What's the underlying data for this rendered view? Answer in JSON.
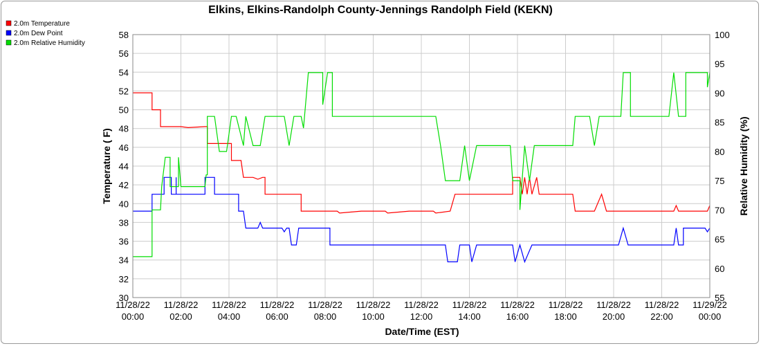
{
  "chart_data": {
    "type": "line",
    "title": "Elkins, Elkins-Randolph County-Jennings Randolph Field (KEKN)",
    "xlabel": "Date/Time (EST)",
    "ylabel": "Temperature ( F)",
    "y2label": "Relative Humidity (%)",
    "xlim_hours": [
      0,
      24
    ],
    "ylim": [
      30,
      58
    ],
    "y2lim": [
      55,
      100
    ],
    "yticks": [
      "30",
      "32",
      "34",
      "36",
      "38",
      "40",
      "42",
      "44",
      "46",
      "48",
      "50",
      "52",
      "54",
      "56",
      "58"
    ],
    "y2ticks": [
      "55",
      "60",
      "65",
      "70",
      "75",
      "80",
      "85",
      "90",
      "95",
      "100"
    ],
    "xticks": [
      {
        "date": "11/28/22",
        "time": "00:00"
      },
      {
        "date": "11/28/22",
        "time": "02:00"
      },
      {
        "date": "11/28/22",
        "time": "04:00"
      },
      {
        "date": "11/28/22",
        "time": "06:00"
      },
      {
        "date": "11/28/22",
        "time": "08:00"
      },
      {
        "date": "11/28/22",
        "time": "10:00"
      },
      {
        "date": "11/28/22",
        "time": "12:00"
      },
      {
        "date": "11/28/22",
        "time": "14:00"
      },
      {
        "date": "11/28/22",
        "time": "16:00"
      },
      {
        "date": "11/28/22",
        "time": "18:00"
      },
      {
        "date": "11/28/22",
        "time": "20:00"
      },
      {
        "date": "11/28/22",
        "time": "22:00"
      },
      {
        "date": "11/29/22",
        "time": "00:00"
      }
    ],
    "grid": true,
    "legend_position": "top-left",
    "series": [
      {
        "name": "2.0m Temperature",
        "color": "#ff0000",
        "axis": "left",
        "points": [
          [
            0,
            51.8
          ],
          [
            0.8,
            51.8
          ],
          [
            0.8,
            50.0
          ],
          [
            1.15,
            50.0
          ],
          [
            1.15,
            48.2
          ],
          [
            2.0,
            48.2
          ],
          [
            2.3,
            48.1
          ],
          [
            3.0,
            48.2
          ],
          [
            3.1,
            48.2
          ],
          [
            3.1,
            46.4
          ],
          [
            4.1,
            46.4
          ],
          [
            4.1,
            44.6
          ],
          [
            4.5,
            44.6
          ],
          [
            4.6,
            42.8
          ],
          [
            5.0,
            42.8
          ],
          [
            5.2,
            42.6
          ],
          [
            5.4,
            42.8
          ],
          [
            5.5,
            42.8
          ],
          [
            5.5,
            41.0
          ],
          [
            7.0,
            41.0
          ],
          [
            7.0,
            39.2
          ],
          [
            8.5,
            39.2
          ],
          [
            8.6,
            39.0
          ],
          [
            9.5,
            39.2
          ],
          [
            10.5,
            39.2
          ],
          [
            10.6,
            39.0
          ],
          [
            11.5,
            39.2
          ],
          [
            12.5,
            39.2
          ],
          [
            12.6,
            39.0
          ],
          [
            13.2,
            39.2
          ],
          [
            13.4,
            41.0
          ],
          [
            15.8,
            41.0
          ],
          [
            15.8,
            42.8
          ],
          [
            16.1,
            42.8
          ],
          [
            16.2,
            41.0
          ],
          [
            16.3,
            42.8
          ],
          [
            16.4,
            41.0
          ],
          [
            16.5,
            42.8
          ],
          [
            16.6,
            41.0
          ],
          [
            16.8,
            42.8
          ],
          [
            16.9,
            41.0
          ],
          [
            18.3,
            41.0
          ],
          [
            18.4,
            39.2
          ],
          [
            19.2,
            39.2
          ],
          [
            19.5,
            41.0
          ],
          [
            19.7,
            39.2
          ],
          [
            20.2,
            39.2
          ],
          [
            21.5,
            39.2
          ],
          [
            22.5,
            39.2
          ],
          [
            22.6,
            39.8
          ],
          [
            22.7,
            39.2
          ],
          [
            23.9,
            39.2
          ],
          [
            24.0,
            39.8
          ]
        ]
      },
      {
        "name": "2.0m Dew Point",
        "color": "#0000ff",
        "axis": "left",
        "points": [
          [
            0,
            39.2
          ],
          [
            0.8,
            39.2
          ],
          [
            0.8,
            41.0
          ],
          [
            1.3,
            41.0
          ],
          [
            1.3,
            42.8
          ],
          [
            1.6,
            42.8
          ],
          [
            1.6,
            41.0
          ],
          [
            1.8,
            41.0
          ],
          [
            1.8,
            42.8
          ],
          [
            1.8,
            41.0
          ],
          [
            3.0,
            41.0
          ],
          [
            3.0,
            42.8
          ],
          [
            3.4,
            42.8
          ],
          [
            3.4,
            41.0
          ],
          [
            4.4,
            41.0
          ],
          [
            4.4,
            39.2
          ],
          [
            4.6,
            39.2
          ],
          [
            4.7,
            37.4
          ],
          [
            5.2,
            37.4
          ],
          [
            5.3,
            38.0
          ],
          [
            5.4,
            37.4
          ],
          [
            6.2,
            37.4
          ],
          [
            6.3,
            37.0
          ],
          [
            6.4,
            37.4
          ],
          [
            6.5,
            37.4
          ],
          [
            6.6,
            35.6
          ],
          [
            6.8,
            35.6
          ],
          [
            6.9,
            37.4
          ],
          [
            8.2,
            37.4
          ],
          [
            8.2,
            35.6
          ],
          [
            13.0,
            35.6
          ],
          [
            13.1,
            33.8
          ],
          [
            13.5,
            33.8
          ],
          [
            13.6,
            35.6
          ],
          [
            14.0,
            35.6
          ],
          [
            14.1,
            33.8
          ],
          [
            14.3,
            35.6
          ],
          [
            15.8,
            35.6
          ],
          [
            15.9,
            33.8
          ],
          [
            16.1,
            35.6
          ],
          [
            16.3,
            33.8
          ],
          [
            16.6,
            35.6
          ],
          [
            17.5,
            35.6
          ],
          [
            18.0,
            35.6
          ],
          [
            18.5,
            35.6
          ],
          [
            19.2,
            35.6
          ],
          [
            20.0,
            35.6
          ],
          [
            20.2,
            35.6
          ],
          [
            20.4,
            37.4
          ],
          [
            20.6,
            35.6
          ],
          [
            22.5,
            35.6
          ],
          [
            22.6,
            37.4
          ],
          [
            22.7,
            35.6
          ],
          [
            22.9,
            35.6
          ],
          [
            22.9,
            37.4
          ],
          [
            23.8,
            37.4
          ],
          [
            23.9,
            37.0
          ],
          [
            24.0,
            37.4
          ]
        ]
      },
      {
        "name": "2.0m Relative Humidity",
        "color": "#00dd00",
        "axis": "right",
        "points": [
          [
            0,
            62.0
          ],
          [
            0.8,
            62.0
          ],
          [
            0.8,
            70.0
          ],
          [
            1.15,
            70.0
          ],
          [
            1.2,
            74.0
          ],
          [
            1.35,
            79.0
          ],
          [
            1.55,
            79.0
          ],
          [
            1.55,
            74.0
          ],
          [
            1.9,
            74.0
          ],
          [
            1.9,
            79.0
          ],
          [
            2.0,
            74.0
          ],
          [
            2.5,
            74.0
          ],
          [
            3.0,
            74.0
          ],
          [
            3.05,
            76.0
          ],
          [
            3.1,
            76.0
          ],
          [
            3.1,
            86.0
          ],
          [
            3.4,
            86.0
          ],
          [
            3.6,
            80.0
          ],
          [
            3.9,
            80.0
          ],
          [
            4.1,
            86.0
          ],
          [
            4.3,
            86.0
          ],
          [
            4.6,
            81.0
          ],
          [
            4.7,
            86.0
          ],
          [
            5.0,
            81.0
          ],
          [
            5.3,
            81.0
          ],
          [
            5.5,
            86.0
          ],
          [
            5.8,
            86.0
          ],
          [
            6.3,
            86.0
          ],
          [
            6.5,
            81.0
          ],
          [
            6.7,
            86.0
          ],
          [
            7.0,
            86.0
          ],
          [
            7.1,
            84.0
          ],
          [
            7.3,
            93.5
          ],
          [
            7.9,
            93.5
          ],
          [
            7.9,
            88.0
          ],
          [
            8.1,
            93.5
          ],
          [
            8.3,
            93.5
          ],
          [
            8.3,
            86.0
          ],
          [
            8.5,
            86.0
          ],
          [
            8.6,
            86.0
          ],
          [
            9.5,
            86.0
          ],
          [
            10.5,
            86.0
          ],
          [
            11.3,
            86.0
          ],
          [
            12.3,
            86.0
          ],
          [
            12.6,
            86.0
          ],
          [
            12.8,
            81.0
          ],
          [
            13.0,
            75.0
          ],
          [
            13.6,
            75.0
          ],
          [
            13.8,
            81.0
          ],
          [
            14.0,
            75.0
          ],
          [
            14.3,
            81.0
          ],
          [
            15.0,
            81.0
          ],
          [
            15.7,
            81.0
          ],
          [
            15.8,
            75.0
          ],
          [
            16.1,
            75.0
          ],
          [
            16.1,
            70.0
          ],
          [
            16.3,
            81.0
          ],
          [
            16.5,
            75.0
          ],
          [
            16.7,
            81.0
          ],
          [
            17.1,
            81.0
          ],
          [
            18.0,
            81.0
          ],
          [
            18.3,
            81.0
          ],
          [
            18.4,
            86.0
          ],
          [
            19.0,
            86.0
          ],
          [
            19.2,
            81.0
          ],
          [
            19.4,
            86.0
          ],
          [
            20.0,
            86.0
          ],
          [
            20.3,
            86.0
          ],
          [
            20.4,
            93.5
          ],
          [
            20.7,
            93.5
          ],
          [
            20.7,
            86.0
          ],
          [
            21.8,
            86.0
          ],
          [
            22.0,
            86.0
          ],
          [
            22.3,
            86.0
          ],
          [
            22.5,
            93.5
          ],
          [
            22.7,
            86.0
          ],
          [
            23.0,
            86.0
          ],
          [
            23.0,
            93.5
          ],
          [
            23.9,
            93.5
          ],
          [
            23.9,
            91.0
          ],
          [
            24.0,
            93.5
          ]
        ]
      }
    ]
  }
}
